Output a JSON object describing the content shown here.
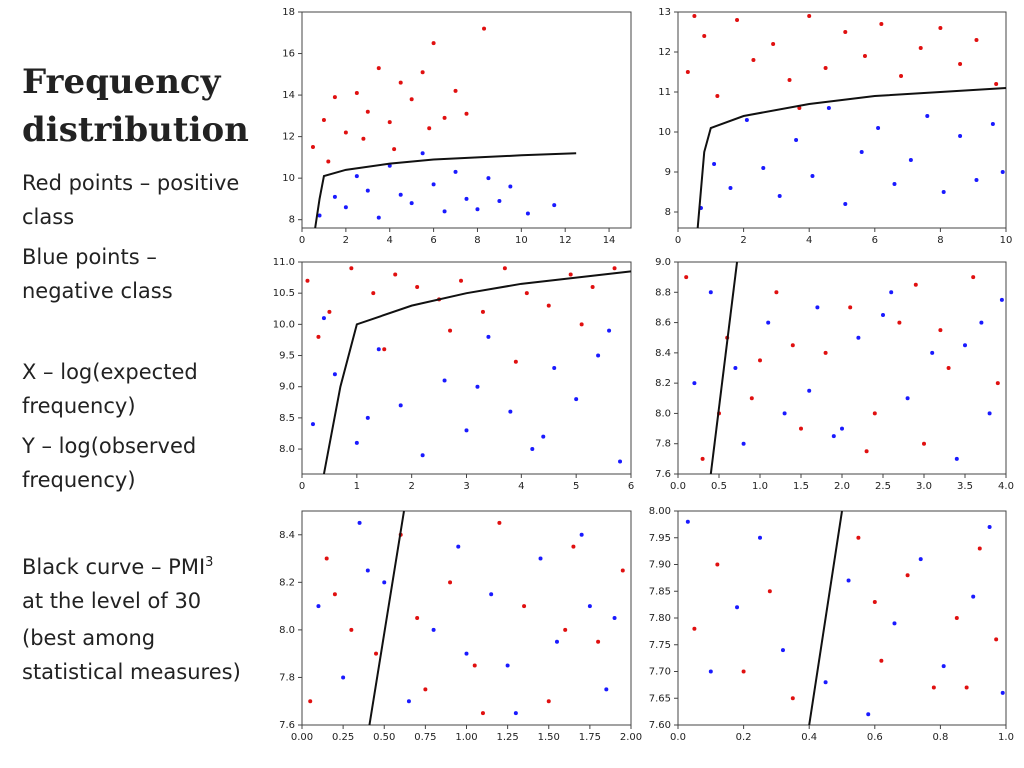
{
  "slide": {
    "title": "Frequency distribution",
    "notes": [
      "Red points – positive class",
      "Blue points – negative class",
      "X – log(expected frequency)",
      "Y – log(observed frequency)"
    ],
    "curve_note": {
      "before": "Black curve – PMI",
      "superscript": "3",
      "after": "at the level of 30"
    },
    "closing_note": "(best among statistical measures)"
  },
  "chart_data": [
    {
      "type": "scatter",
      "xlim": [
        0,
        15
      ],
      "ylim": [
        7.6,
        18
      ],
      "xticks": [
        0,
        2,
        4,
        6,
        8,
        10,
        12,
        14
      ],
      "yticks": [
        8,
        10,
        12,
        14,
        16,
        18
      ],
      "series": [
        {
          "kind": "points",
          "color": "#e01010",
          "x": [
            0.5,
            1,
            1.5,
            2,
            2.5,
            3,
            3.5,
            4,
            4.5,
            5,
            5.5,
            6,
            6.5,
            7,
            1.2,
            2.8,
            4.2,
            5.8,
            7.5,
            8.3
          ],
          "values": [
            11.5,
            12.8,
            13.9,
            12.2,
            14.1,
            13.2,
            15.3,
            12.7,
            14.6,
            13.8,
            15.1,
            16.5,
            12.9,
            14.2,
            10.8,
            11.9,
            11.4,
            12.4,
            13.1,
            17.2
          ]
        },
        {
          "kind": "points",
          "color": "#1a1aff",
          "x": [
            0.8,
            1.5,
            2,
            2.5,
            3,
            3.5,
            4,
            4.5,
            5,
            5.5,
            6,
            6.5,
            7,
            7.5,
            8,
            8.5,
            9,
            9.5,
            10.3,
            11.5
          ],
          "values": [
            8.2,
            9.1,
            8.6,
            10.1,
            9.4,
            8.1,
            10.6,
            9.2,
            8.8,
            11.2,
            9.7,
            8.4,
            10.3,
            9.0,
            8.5,
            10.0,
            8.9,
            9.6,
            8.3,
            8.7
          ]
        },
        {
          "kind": "line",
          "color": "#111111",
          "x": [
            0.6,
            0.8,
            1,
            2,
            4,
            6,
            8,
            10,
            12.5
          ],
          "values": [
            7.6,
            9,
            10.1,
            10.4,
            10.7,
            10.9,
            11.0,
            11.1,
            11.2
          ]
        }
      ]
    },
    {
      "type": "scatter",
      "xlim": [
        0,
        10
      ],
      "ylim": [
        7.6,
        13
      ],
      "xticks": [
        0,
        2,
        4,
        6,
        8,
        10
      ],
      "yticks": [
        8,
        9,
        10,
        11,
        12,
        13
      ],
      "series": [
        {
          "kind": "points",
          "color": "#e01010",
          "x": [
            0.3,
            0.8,
            1.2,
            1.8,
            2.3,
            2.9,
            3.4,
            4,
            4.5,
            5.1,
            5.7,
            6.2,
            6.8,
            7.4,
            8,
            8.6,
            9.1,
            9.7,
            0.5,
            3.7
          ],
          "values": [
            11.5,
            12.4,
            10.9,
            12.8,
            11.8,
            12.2,
            11.3,
            12.9,
            11.6,
            12.5,
            11.9,
            12.7,
            11.4,
            12.1,
            12.6,
            11.7,
            12.3,
            11.2,
            12.9,
            10.6
          ]
        },
        {
          "kind": "points",
          "color": "#1a1aff",
          "x": [
            0.7,
            1.1,
            1.6,
            2.1,
            2.6,
            3.1,
            3.6,
            4.1,
            4.6,
            5.1,
            5.6,
            6.1,
            6.6,
            7.1,
            7.6,
            8.1,
            8.6,
            9.1,
            9.6,
            9.9
          ],
          "values": [
            8.1,
            9.2,
            8.6,
            10.3,
            9.1,
            8.4,
            9.8,
            8.9,
            10.6,
            8.2,
            9.5,
            10.1,
            8.7,
            9.3,
            10.4,
            8.5,
            9.9,
            8.8,
            10.2,
            9.0
          ]
        },
        {
          "kind": "line",
          "color": "#111111",
          "x": [
            0.6,
            0.8,
            1,
            2,
            4,
            6,
            8,
            10
          ],
          "values": [
            7.6,
            9.5,
            10.1,
            10.4,
            10.7,
            10.9,
            11.0,
            11.1
          ]
        }
      ]
    },
    {
      "type": "scatter",
      "xlim": [
        0,
        6
      ],
      "ylim": [
        7.6,
        11.0
      ],
      "xticks": [
        0,
        1,
        2,
        3,
        4,
        5,
        6
      ],
      "yticks": [
        {
          "value": 8,
          "label": "8.0"
        },
        8.5,
        {
          "value": 9,
          "label": "9.0"
        },
        9.5,
        {
          "value": 10,
          "label": "10.0"
        },
        10.5,
        {
          "value": 11,
          "label": "11.0"
        }
      ],
      "series": [
        {
          "kind": "points",
          "color": "#e01010",
          "x": [
            0.1,
            0.5,
            0.9,
            1.3,
            1.7,
            2.1,
            2.5,
            2.9,
            3.3,
            3.7,
            4.1,
            4.5,
            4.9,
            5.3,
            5.7,
            0.3,
            1.5,
            2.7,
            3.9,
            5.1
          ],
          "values": [
            10.7,
            10.2,
            10.9,
            10.5,
            10.8,
            10.6,
            10.4,
            10.7,
            10.2,
            10.9,
            10.5,
            10.3,
            10.8,
            10.6,
            10.9,
            9.8,
            9.6,
            9.9,
            9.4,
            10.0
          ]
        },
        {
          "kind": "points",
          "color": "#1a1aff",
          "x": [
            0.2,
            0.6,
            1.0,
            1.4,
            1.8,
            2.2,
            2.6,
            3.0,
            3.4,
            3.8,
            4.2,
            4.6,
            5.0,
            5.4,
            5.8,
            0.4,
            1.2,
            3.2,
            4.4,
            5.6
          ],
          "values": [
            8.4,
            9.2,
            8.1,
            9.6,
            8.7,
            7.9,
            9.1,
            8.3,
            9.8,
            8.6,
            8.0,
            9.3,
            8.8,
            9.5,
            7.8,
            10.1,
            8.5,
            9.0,
            8.2,
            9.9
          ]
        },
        {
          "kind": "line",
          "color": "#111111",
          "x": [
            0.4,
            0.7,
            1,
            2,
            3,
            4,
            5,
            6
          ],
          "values": [
            7.6,
            9,
            10,
            10.3,
            10.5,
            10.65,
            10.75,
            10.85
          ]
        }
      ]
    },
    {
      "type": "scatter",
      "xlim": [
        0,
        4
      ],
      "ylim": [
        7.6,
        9.0
      ],
      "xticks": [
        {
          "value": 0,
          "label": "0.0"
        },
        0.5,
        {
          "value": 1,
          "label": "1.0"
        },
        1.5,
        {
          "value": 2,
          "label": "2.0"
        },
        2.5,
        {
          "value": 3,
          "label": "3.0"
        },
        3.5,
        {
          "value": 4,
          "label": "4.0"
        }
      ],
      "yticks": [
        7.6,
        7.8,
        {
          "value": 8,
          "label": "8.0"
        },
        8.2,
        8.4,
        8.6,
        8.8,
        {
          "value": 9,
          "label": "9.0"
        }
      ],
      "series": [
        {
          "kind": "points",
          "color": "#e01010",
          "x": [
            0.1,
            0.3,
            0.6,
            0.9,
            1.2,
            1.5,
            1.8,
            2.1,
            2.4,
            2.7,
            3.0,
            3.3,
            3.6,
            3.9,
            0.5,
            1.4,
            2.3,
            3.2,
            1.0,
            2.9
          ],
          "values": [
            8.9,
            7.7,
            8.5,
            8.1,
            8.8,
            7.9,
            8.4,
            8.7,
            8.0,
            8.6,
            7.8,
            8.3,
            8.9,
            8.2,
            8.0,
            8.45,
            7.75,
            8.55,
            8.35,
            8.85
          ]
        },
        {
          "kind": "points",
          "color": "#1a1aff",
          "x": [
            0.2,
            0.4,
            0.8,
            1.1,
            1.3,
            1.7,
            2.0,
            2.2,
            2.6,
            2.8,
            3.1,
            3.4,
            3.7,
            3.8,
            0.7,
            1.6,
            2.5,
            3.5,
            1.9,
            3.95
          ],
          "values": [
            8.2,
            8.8,
            7.8,
            8.6,
            8.0,
            8.7,
            7.9,
            8.5,
            8.8,
            8.1,
            8.4,
            7.7,
            8.6,
            8.0,
            8.3,
            8.15,
            8.65,
            8.45,
            7.85,
            8.75
          ]
        },
        {
          "kind": "line",
          "color": "#111111",
          "x": [
            0.4,
            0.72
          ],
          "values": [
            7.6,
            9.0
          ]
        }
      ]
    },
    {
      "type": "scatter",
      "xlim": [
        0,
        2
      ],
      "ylim": [
        7.6,
        8.5
      ],
      "xticks": [
        {
          "value": 0,
          "label": "0.00"
        },
        0.25,
        {
          "value": 0.5,
          "label": "0.50"
        },
        0.75,
        {
          "value": 1,
          "label": "1.00"
        },
        1.25,
        {
          "value": 1.5,
          "label": "1.50"
        },
        1.75,
        {
          "value": 2,
          "label": "2.00"
        }
      ],
      "yticks": [
        7.6,
        7.8,
        {
          "value": 8,
          "label": "8.0"
        },
        8.2,
        8.4
      ],
      "series": [
        {
          "kind": "points",
          "color": "#e01010",
          "x": [
            0.05,
            0.15,
            0.3,
            0.45,
            0.6,
            0.75,
            0.9,
            1.05,
            1.2,
            1.35,
            1.5,
            1.65,
            1.8,
            1.95,
            0.2,
            0.7,
            1.1,
            1.6
          ],
          "values": [
            7.7,
            8.3,
            8.0,
            7.9,
            8.4,
            7.75,
            8.2,
            7.85,
            8.45,
            8.1,
            7.7,
            8.35,
            7.95,
            8.25,
            8.15,
            8.05,
            7.65,
            8.0
          ]
        },
        {
          "kind": "points",
          "color": "#1a1aff",
          "x": [
            0.1,
            0.25,
            0.35,
            0.5,
            0.65,
            0.8,
            0.95,
            1.0,
            1.15,
            1.3,
            1.45,
            1.55,
            1.7,
            1.85,
            1.9,
            0.4,
            1.25,
            1.75
          ],
          "values": [
            8.1,
            7.8,
            8.45,
            8.2,
            7.7,
            8.0,
            8.35,
            7.9,
            8.15,
            7.65,
            8.3,
            7.95,
            8.4,
            7.75,
            8.05,
            8.25,
            7.85,
            8.1
          ]
        },
        {
          "kind": "line",
          "color": "#111111",
          "x": [
            0.41,
            0.62
          ],
          "values": [
            7.6,
            8.5
          ]
        }
      ]
    },
    {
      "type": "scatter",
      "xlim": [
        0,
        1
      ],
      "ylim": [
        7.6,
        8.0
      ],
      "xticks": [
        {
          "value": 0,
          "label": "0.0"
        },
        0.2,
        0.4,
        0.6,
        0.8,
        {
          "value": 1,
          "label": "1.0"
        }
      ],
      "yticks": [
        {
          "value": 7.6,
          "label": "7.60"
        },
        7.65,
        {
          "value": 7.7,
          "label": "7.70"
        },
        7.75,
        {
          "value": 7.8,
          "label": "7.80"
        },
        7.85,
        {
          "value": 7.9,
          "label": "7.90"
        },
        7.95,
        {
          "value": 8,
          "label": "8.00"
        }
      ],
      "series": [
        {
          "kind": "points",
          "color": "#e01010",
          "x": [
            0.05,
            0.12,
            0.2,
            0.28,
            0.35,
            0.55,
            0.62,
            0.7,
            0.78,
            0.85,
            0.92,
            0.97,
            0.6,
            0.88
          ],
          "values": [
            7.78,
            7.9,
            7.7,
            7.85,
            7.65,
            7.95,
            7.72,
            7.88,
            7.67,
            7.8,
            7.93,
            7.76,
            7.83,
            7.67
          ]
        },
        {
          "kind": "points",
          "color": "#1a1aff",
          "x": [
            0.03,
            0.1,
            0.18,
            0.25,
            0.32,
            0.45,
            0.52,
            0.58,
            0.66,
            0.74,
            0.81,
            0.9,
            0.95,
            0.99
          ],
          "values": [
            7.98,
            7.7,
            7.82,
            7.95,
            7.74,
            7.68,
            7.87,
            7.62,
            7.79,
            7.91,
            7.71,
            7.84,
            7.97,
            7.66
          ]
        },
        {
          "kind": "line",
          "color": "#111111",
          "x": [
            0.4,
            0.5
          ],
          "values": [
            7.6,
            8.0
          ]
        }
      ]
    }
  ]
}
